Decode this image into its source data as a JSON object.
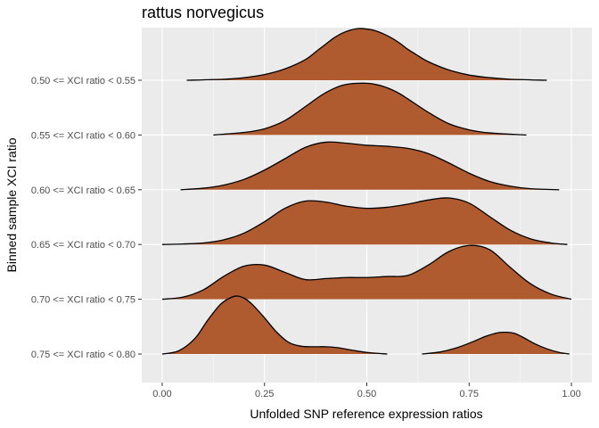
{
  "chart_data": {
    "type": "ridgeline",
    "title": "rattus norvegicus",
    "xlabel": "Unfolded SNP reference expression ratios",
    "ylabel": "Binned sample XCI ratio",
    "xlim": [
      -0.05,
      1.05
    ],
    "x_ticks": [
      {
        "value": 0.0,
        "label": "0.00"
      },
      {
        "value": 0.25,
        "label": "0.25"
      },
      {
        "value": 0.5,
        "label": "0.50"
      },
      {
        "value": 0.75,
        "label": "0.75"
      },
      {
        "value": 1.0,
        "label": "1.00"
      }
    ],
    "grid": true,
    "fill_color": "#b05a2f",
    "line_color": "#000000",
    "panel_bg": "#ebebeb",
    "series": [
      {
        "name": "0.50 <= XCI ratio < 0.55",
        "x": [
          0.06,
          0.15,
          0.2,
          0.25,
          0.3,
          0.35,
          0.38,
          0.4,
          0.42,
          0.44,
          0.46,
          0.48,
          0.5,
          0.52,
          0.54,
          0.56,
          0.58,
          0.6,
          0.62,
          0.65,
          0.7,
          0.75,
          0.8,
          0.85,
          0.94
        ],
        "density": [
          0.0,
          0.02,
          0.05,
          0.11,
          0.22,
          0.4,
          0.58,
          0.7,
          0.82,
          0.91,
          0.97,
          1.0,
          0.99,
          0.96,
          0.9,
          0.82,
          0.72,
          0.6,
          0.5,
          0.36,
          0.2,
          0.1,
          0.05,
          0.02,
          0.0
        ]
      },
      {
        "name": "0.55 <= XCI ratio < 0.60",
        "x": [
          0.125,
          0.2,
          0.25,
          0.3,
          0.35,
          0.38,
          0.4,
          0.42,
          0.44,
          0.46,
          0.48,
          0.5,
          0.52,
          0.54,
          0.56,
          0.58,
          0.6,
          0.65,
          0.7,
          0.75,
          0.8,
          0.89
        ],
        "density": [
          0.0,
          0.05,
          0.12,
          0.28,
          0.55,
          0.72,
          0.82,
          0.9,
          0.96,
          0.99,
          1.0,
          1.0,
          0.98,
          0.94,
          0.88,
          0.8,
          0.7,
          0.44,
          0.22,
          0.1,
          0.04,
          0.0
        ]
      },
      {
        "name": "0.60 <= XCI ratio < 0.65",
        "x": [
          0.045,
          0.1,
          0.15,
          0.2,
          0.25,
          0.3,
          0.35,
          0.4,
          0.45,
          0.5,
          0.55,
          0.6,
          0.65,
          0.7,
          0.75,
          0.8,
          0.85,
          0.9,
          0.97
        ],
        "density": [
          0.0,
          0.03,
          0.09,
          0.2,
          0.38,
          0.6,
          0.82,
          0.92,
          0.9,
          0.86,
          0.84,
          0.8,
          0.7,
          0.52,
          0.32,
          0.16,
          0.07,
          0.02,
          0.0
        ]
      },
      {
        "name": "0.65 <= XCI ratio < 0.70",
        "x": [
          0.0,
          0.05,
          0.1,
          0.15,
          0.2,
          0.25,
          0.3,
          0.35,
          0.4,
          0.45,
          0.5,
          0.55,
          0.6,
          0.65,
          0.7,
          0.75,
          0.8,
          0.85,
          0.9,
          0.95,
          0.99
        ],
        "density": [
          0.0,
          0.01,
          0.03,
          0.09,
          0.22,
          0.44,
          0.7,
          0.84,
          0.82,
          0.74,
          0.7,
          0.72,
          0.78,
          0.86,
          0.9,
          0.8,
          0.54,
          0.28,
          0.11,
          0.03,
          0.0
        ]
      },
      {
        "name": "0.70 <= XCI ratio < 0.75",
        "x": [
          0.0,
          0.05,
          0.1,
          0.15,
          0.2,
          0.25,
          0.3,
          0.35,
          0.4,
          0.45,
          0.5,
          0.55,
          0.6,
          0.65,
          0.7,
          0.75,
          0.8,
          0.85,
          0.9,
          0.95,
          1.0
        ],
        "density": [
          0.0,
          0.04,
          0.18,
          0.44,
          0.64,
          0.66,
          0.52,
          0.38,
          0.4,
          0.42,
          0.42,
          0.44,
          0.46,
          0.66,
          0.92,
          1.04,
          0.96,
          0.62,
          0.3,
          0.1,
          0.0
        ]
      },
      {
        "name": "0.75 <= XCI ratio < 0.80",
        "x": [
          0.0,
          0.04,
          0.08,
          0.11,
          0.14,
          0.16,
          0.18,
          0.2,
          0.22,
          0.25,
          0.28,
          0.31,
          0.34,
          0.37,
          0.4,
          0.43,
          0.46,
          0.5,
          0.55
        ],
        "density": [
          0.0,
          0.06,
          0.3,
          0.64,
          0.94,
          1.06,
          1.12,
          1.08,
          0.96,
          0.7,
          0.42,
          0.22,
          0.15,
          0.14,
          0.14,
          0.12,
          0.08,
          0.03,
          0.0
        ],
        "x2": [
          0.635,
          0.68,
          0.72,
          0.76,
          0.79,
          0.82,
          0.84,
          0.86,
          0.88,
          0.91,
          0.94,
          0.97,
          0.995
        ],
        "density2": [
          0.0,
          0.04,
          0.12,
          0.24,
          0.34,
          0.41,
          0.42,
          0.4,
          0.33,
          0.2,
          0.1,
          0.03,
          0.0
        ]
      }
    ]
  }
}
